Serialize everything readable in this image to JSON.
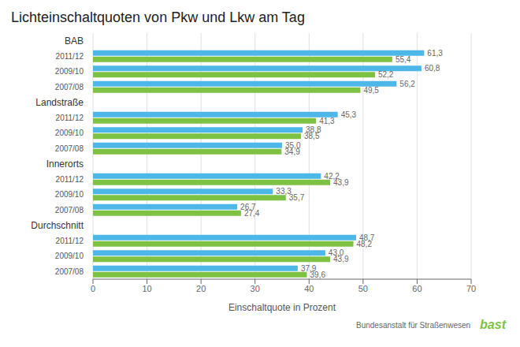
{
  "chart_data": {
    "type": "bar",
    "orientation": "horizontal",
    "title": "Lichteinschaltquoten von Pkw und Lkw am Tag",
    "xlabel": "Einschaltquote in Prozent",
    "categories": [
      "BAB",
      "2011/12",
      "2009/10",
      "2007/08",
      "Landstraße",
      "2011/12",
      "2009/10",
      "2007/08",
      "Innerorts",
      "2011/12",
      "2009/10",
      "2007/08",
      "Durchschnitt",
      "2011/12",
      "2009/10",
      "2007/08"
    ],
    "series": [
      {
        "color": "#4DB8E8",
        "values": [
          null,
          61.3,
          60.8,
          56.2,
          null,
          45.3,
          38.8,
          35.0,
          null,
          42.2,
          33.3,
          26.7,
          null,
          48.7,
          43.0,
          37.9
        ],
        "value_labels": [
          null,
          "61,3",
          "60,8",
          "56,2",
          null,
          "45,3",
          "38,8",
          "35,0",
          null,
          "42,2",
          "33,3",
          "26,7",
          null,
          "48,7",
          "43,0",
          "37,9"
        ]
      },
      {
        "color": "#7DC242",
        "values": [
          null,
          55.4,
          52.2,
          49.5,
          null,
          41.3,
          38.5,
          34.9,
          null,
          43.9,
          35.7,
          27.4,
          null,
          48.2,
          43.9,
          39.6
        ],
        "value_labels": [
          null,
          "55,4",
          "52,2",
          "49,5",
          null,
          "41,3",
          "38,5",
          "34,9",
          null,
          "43,9",
          "35,7",
          "27,4",
          null,
          "48,2",
          "43,9",
          "39,6"
        ]
      }
    ],
    "xlim": [
      0,
      70
    ],
    "xticks": [
      0,
      10,
      20,
      30,
      40,
      50,
      60,
      70
    ],
    "grid": true,
    "data_labels": true,
    "annotations": [
      "Bundesanstalt für Straßenwesen",
      "bast"
    ]
  }
}
